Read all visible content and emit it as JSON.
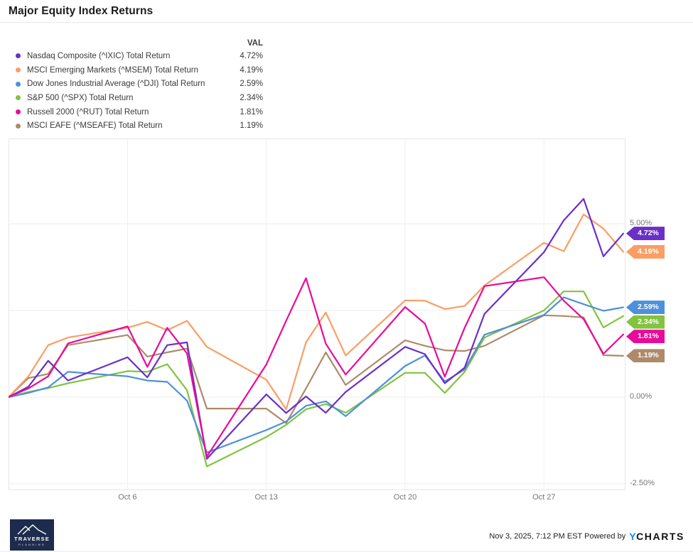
{
  "header": {
    "title": "Major Equity Index Returns"
  },
  "legend": {
    "val_header": "VAL",
    "items": [
      {
        "label": "Nasdaq Composite (^IXIC) Total Return",
        "value": "4.72%",
        "color": "#6B2FC9"
      },
      {
        "label": "MSCI Emerging Markets (^MSEM) Total Return",
        "value": "4.19%",
        "color": "#FA9E64"
      },
      {
        "label": "Dow Jones Industrial Average (^DJI) Total Return",
        "value": "2.59%",
        "color": "#4D90DB"
      },
      {
        "label": "S&P 500 (^SPX) Total Return",
        "value": "2.34%",
        "color": "#82C341"
      },
      {
        "label": "Russell 2000 (^RUT) Total Return",
        "value": "1.81%",
        "color": "#E90A9B"
      },
      {
        "label": "MSCI EAFE (^MSEAFE) Total Return",
        "value": "1.19%",
        "color": "#AE8A68"
      }
    ]
  },
  "chart_data": {
    "type": "line",
    "unit": "percent total return",
    "dates": [
      "Sep 30",
      "Oct 1",
      "Oct 2",
      "Oct 3",
      "Oct 6",
      "Oct 7",
      "Oct 8",
      "Oct 9",
      "Oct 10",
      "Oct 13",
      "Oct 14",
      "Oct 15",
      "Oct 16",
      "Oct 17",
      "Oct 20",
      "Oct 21",
      "Oct 22",
      "Oct 23",
      "Oct 24",
      "Oct 27",
      "Oct 28",
      "Oct 29",
      "Oct 30",
      "Oct 31"
    ],
    "day_offsets": [
      0,
      1,
      2,
      3,
      6,
      7,
      8,
      9,
      10,
      13,
      14,
      15,
      16,
      17,
      20,
      21,
      22,
      23,
      24,
      27,
      28,
      29,
      30,
      31
    ],
    "series": [
      {
        "key": "nasdaq",
        "name": "Nasdaq Composite (^IXIC) Total Return",
        "color": "#6B2FC9",
        "end_label": "4.72%",
        "values": [
          0,
          0.3,
          1.05,
          0.48,
          1.15,
          0.57,
          1.5,
          1.58,
          -1.78,
          0.08,
          -0.46,
          0.02,
          -0.45,
          0.15,
          1.45,
          1.24,
          0.4,
          0.85,
          2.4,
          4.18,
          5.1,
          5.72,
          4.06,
          4.72
        ]
      },
      {
        "key": "msem",
        "name": "MSCI Emerging Markets (^MSEM) Total Return",
        "color": "#FA9E64",
        "end_label": "4.19%",
        "values": [
          0,
          0.6,
          1.5,
          1.72,
          2.0,
          2.17,
          1.93,
          2.2,
          1.45,
          0.5,
          -0.35,
          1.58,
          2.44,
          1.2,
          2.79,
          2.78,
          2.54,
          2.63,
          3.22,
          4.45,
          4.21,
          5.27,
          4.86,
          4.19
        ]
      },
      {
        "key": "dji",
        "name": "Dow Jones Industrial Average (^DJI) Total Return",
        "color": "#4D90DB",
        "end_label": "2.59%",
        "values": [
          0,
          0.12,
          0.28,
          0.73,
          0.6,
          0.48,
          0.44,
          -0.1,
          -1.6,
          -0.95,
          -0.7,
          -0.25,
          -0.12,
          -0.55,
          0.9,
          1.2,
          0.45,
          0.8,
          1.8,
          2.37,
          2.88,
          2.68,
          2.49,
          2.59
        ]
      },
      {
        "key": "spx",
        "name": "S&P 500 (^SPX) Total Return",
        "color": "#82C341",
        "end_label": "2.34%",
        "values": [
          0,
          0.15,
          0.26,
          0.4,
          0.75,
          0.73,
          0.95,
          0.2,
          -2.0,
          -1.15,
          -0.8,
          -0.35,
          -0.2,
          -0.45,
          0.7,
          0.7,
          0.12,
          0.73,
          1.72,
          2.5,
          3.05,
          3.05,
          2.01,
          2.34
        ]
      },
      {
        "key": "rut",
        "name": "Russell 2000 (^RUT) Total Return",
        "color": "#E90A9B",
        "end_label": "1.81%",
        "values": [
          0,
          0.25,
          0.6,
          1.55,
          2.04,
          0.87,
          2.0,
          1.26,
          -1.72,
          0.94,
          2.2,
          3.43,
          1.54,
          0.65,
          2.6,
          2.12,
          0.59,
          2.0,
          3.2,
          3.46,
          2.78,
          2.25,
          1.25,
          1.81
        ]
      },
      {
        "key": "eafe",
        "name": "MSCI EAFE (^MSEAFE) Total Return",
        "color": "#AE8A68",
        "end_label": "1.19%",
        "values": [
          0,
          0.55,
          0.67,
          1.5,
          1.79,
          1.17,
          1.29,
          1.4,
          -0.33,
          -0.33,
          -0.75,
          0.25,
          1.29,
          0.35,
          1.64,
          1.48,
          1.35,
          1.33,
          1.48,
          2.36,
          2.34,
          2.3,
          1.21,
          1.19
        ]
      }
    ],
    "draw_order": [
      "eafe",
      "msem",
      "spx",
      "dji",
      "nasdaq",
      "rut"
    ],
    "x_ticks": [
      {
        "label": "Oct 6",
        "offset": 6
      },
      {
        "label": "Oct 13",
        "offset": 13
      },
      {
        "label": "Oct 20",
        "offset": 20
      },
      {
        "label": "Oct 27",
        "offset": 27
      }
    ],
    "y_ticks": [
      {
        "label": "5.00%",
        "value": 5
      },
      {
        "label": "0.00%",
        "value": 0
      },
      {
        "label": "-2.50%",
        "value": -2.5
      }
    ],
    "y_gridlines": [
      5,
      2.5,
      0,
      -2.5
    ],
    "ylim": [
      -2.68,
      7.46
    ],
    "grid": true,
    "legend_position": "top-left"
  },
  "footer": {
    "logo_line1": "TRAVERSE",
    "logo_line2": "PLANNING",
    "timestamp": "Nov 3, 2025, 7:12 PM EST",
    "powered_by": "Powered by",
    "brand_y": "Y",
    "brand_charts": "CHARTS"
  }
}
